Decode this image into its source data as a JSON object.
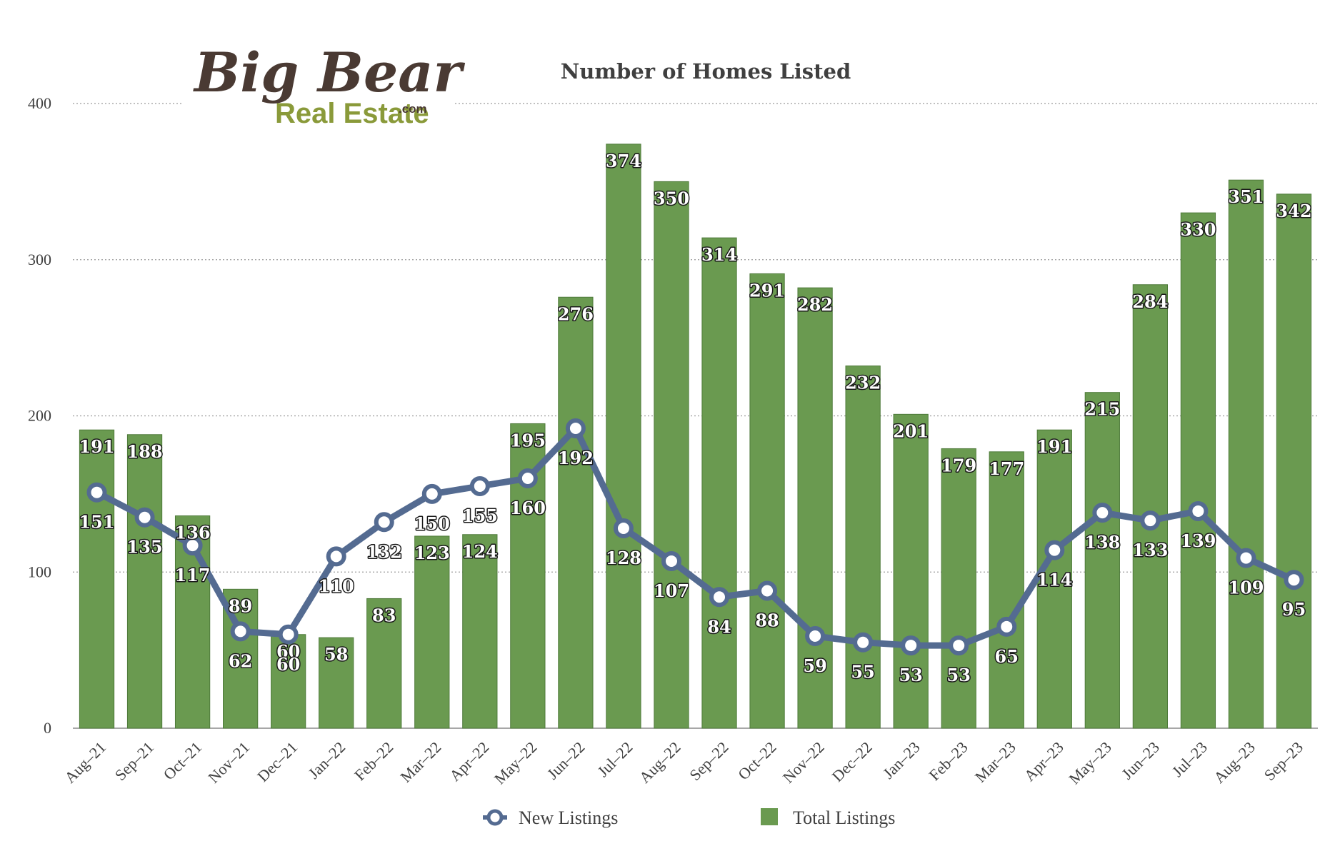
{
  "chart_data": {
    "type": "bar",
    "title": "Number of Homes Listed",
    "categories": [
      "Aug-21",
      "Sep-21",
      "Oct-21",
      "Nov-21",
      "Dec-21",
      "Jan-22",
      "Feb-22",
      "Mar-22",
      "Apr-22",
      "May-22",
      "Jun-22",
      "Jul-22",
      "Aug-22",
      "Sep-22",
      "Oct-22",
      "Nov-22",
      "Dec-22",
      "Jan-23",
      "Feb-23",
      "Mar-23",
      "Apr-23",
      "May-23",
      "Jun-23",
      "Jul-23",
      "Aug-23",
      "Sep-23"
    ],
    "series": [
      {
        "name": "Total Listings",
        "type": "bar",
        "color": "#6a9a50",
        "values": [
          191,
          188,
          136,
          89,
          60,
          58,
          83,
          123,
          124,
          195,
          276,
          374,
          350,
          314,
          291,
          282,
          232,
          201,
          179,
          177,
          191,
          215,
          284,
          330,
          351,
          342
        ]
      },
      {
        "name": "New Listings",
        "type": "line",
        "color": "#546b91",
        "values": [
          151,
          135,
          117,
          62,
          60,
          110,
          132,
          150,
          155,
          160,
          192,
          128,
          107,
          84,
          88,
          59,
          55,
          53,
          53,
          65,
          114,
          138,
          133,
          139,
          109,
          95
        ]
      }
    ],
    "ylim": [
      0,
      400
    ],
    "yticks": [
      0,
      100,
      200,
      300,
      400
    ],
    "grid": true,
    "legend_position": "bottom"
  },
  "logo": {
    "line1": "Big Bear",
    "line2": "Real Estate",
    "suffix": ".com"
  }
}
